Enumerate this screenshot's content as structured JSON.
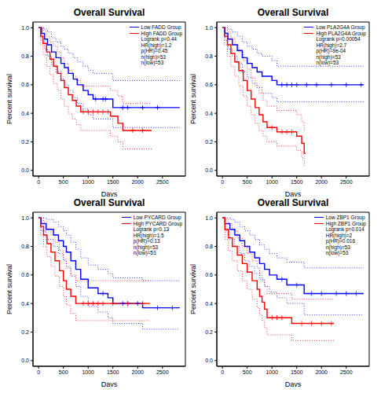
{
  "chart_data": [
    {
      "type": "line",
      "title": "Overall Survival",
      "x_label": "Days",
      "y_label": "Percent survival",
      "xlim": [
        -114,
        2964
      ],
      "xticks": [
        0,
        500,
        1000,
        1500,
        2000,
        2500
      ],
      "ylim": [
        -0.04,
        1.04
      ],
      "yticks": [
        {
          "value": 0,
          "label": "0.0"
        },
        0.2,
        0.4,
        0.6,
        0.8,
        {
          "value": 1,
          "label": "1.0"
        }
      ],
      "legend": "top-right",
      "grid": false,
      "annotations": [
        "Logrank p=0.44",
        "HR(high)=1.2",
        "p(HR)=0.45",
        "n(high)=53",
        "n(low)=53"
      ],
      "series": [
        {
          "name": "Low FADD Group",
          "color": "#0000ff",
          "line_style": "step",
          "marker": "plus",
          "x": [
            0,
            60,
            120,
            180,
            260,
            350,
            450,
            520,
            600,
            700,
            780,
            900,
            1000,
            1100,
            1500,
            2850
          ],
          "values": [
            1,
            0.96,
            0.92,
            0.88,
            0.83,
            0.79,
            0.75,
            0.72,
            0.68,
            0.64,
            0.6,
            0.56,
            0.53,
            0.5,
            0.44,
            0.44
          ],
          "lower": [
            1,
            0.91,
            0.85,
            0.8,
            0.74,
            0.69,
            0.64,
            0.6,
            0.56,
            0.51,
            0.47,
            0.43,
            0.39,
            0.36,
            0.3,
            0.3
          ],
          "upper": [
            1,
            1,
            0.99,
            0.97,
            0.93,
            0.9,
            0.87,
            0.85,
            0.82,
            0.79,
            0.76,
            0.73,
            0.7,
            0.68,
            0.63,
            0.63
          ],
          "censored": [
            1150,
            1300,
            1350,
            1700,
            1800,
            2100,
            2400
          ]
        },
        {
          "name": "High FADD Group",
          "color": "#ff0000",
          "line_style": "step",
          "marker": "plus",
          "x": [
            0,
            40,
            90,
            160,
            230,
            300,
            380,
            450,
            520,
            600,
            680,
            760,
            850,
            1450,
            1600,
            1700,
            2280
          ],
          "values": [
            1,
            0.94,
            0.89,
            0.83,
            0.78,
            0.73,
            0.68,
            0.63,
            0.58,
            0.53,
            0.49,
            0.45,
            0.41,
            0.38,
            0.33,
            0.28,
            0.28
          ],
          "lower": [
            1,
            0.88,
            0.81,
            0.73,
            0.67,
            0.61,
            0.56,
            0.5,
            0.45,
            0.4,
            0.36,
            0.32,
            0.28,
            0.24,
            0.2,
            0.15,
            0.15
          ],
          "upper": [
            1,
            1,
            0.98,
            0.94,
            0.9,
            0.87,
            0.83,
            0.79,
            0.75,
            0.7,
            0.66,
            0.63,
            0.59,
            0.56,
            0.52,
            0.47,
            0.47
          ],
          "censored": [
            900,
            1000,
            1100,
            1200,
            1300,
            1400,
            1900,
            2100
          ]
        }
      ]
    },
    {
      "type": "line",
      "title": "Overall Survival",
      "x_label": "Days",
      "y_label": "Percent survival",
      "xlim": [
        -114,
        2964
      ],
      "xticks": [
        0,
        500,
        1000,
        1500,
        2000,
        2500
      ],
      "ylim": [
        -0.04,
        1.04
      ],
      "yticks": [
        {
          "value": 0,
          "label": "0.0"
        },
        0.2,
        0.4,
        0.6,
        0.8,
        {
          "value": 1,
          "label": "1.0"
        }
      ],
      "legend": "top-right",
      "grid": false,
      "annotations": [
        "Logrank p=0.00054",
        "HR(high)=2.7",
        "p(HR)=9e-04",
        "n(high)=53",
        "n(low)=53"
      ],
      "series": [
        {
          "name": "Low PLA2G4A Group",
          "color": "#0000ff",
          "line_style": "step",
          "marker": "plus",
          "x": [
            0,
            50,
            110,
            200,
            300,
            400,
            500,
            600,
            700,
            800,
            1000,
            1100,
            2850
          ],
          "values": [
            1,
            0.96,
            0.92,
            0.88,
            0.84,
            0.79,
            0.75,
            0.72,
            0.69,
            0.66,
            0.63,
            0.6,
            0.6
          ],
          "lower": [
            1,
            0.91,
            0.85,
            0.8,
            0.75,
            0.69,
            0.65,
            0.61,
            0.58,
            0.54,
            0.51,
            0.48,
            0.48
          ],
          "upper": [
            1,
            1,
            0.99,
            0.97,
            0.94,
            0.9,
            0.87,
            0.85,
            0.82,
            0.8,
            0.77,
            0.73,
            0.73
          ],
          "censored": [
            1200,
            1300,
            1400,
            1500,
            1700,
            1900,
            2200,
            2500,
            2800
          ]
        },
        {
          "name": "High PLA2G4A Group",
          "color": "#ff0000",
          "line_style": "step",
          "marker": "plus",
          "x": [
            0,
            40,
            100,
            170,
            250,
            330,
            420,
            500,
            580,
            660,
            740,
            820,
            900,
            1100,
            1500,
            1600,
            1650,
            1680
          ],
          "values": [
            1,
            0.94,
            0.88,
            0.82,
            0.76,
            0.7,
            0.63,
            0.56,
            0.5,
            0.44,
            0.39,
            0.34,
            0.3,
            0.27,
            0.24,
            0.19,
            0.12,
            0.12
          ],
          "lower": [
            1,
            0.88,
            0.8,
            0.73,
            0.66,
            0.59,
            0.52,
            0.45,
            0.39,
            0.33,
            0.28,
            0.24,
            0.2,
            0.17,
            0.14,
            0.09,
            0.03,
            0.03
          ],
          "upper": [
            1,
            1,
            0.97,
            0.93,
            0.88,
            0.83,
            0.77,
            0.71,
            0.65,
            0.59,
            0.54,
            0.49,
            0.45,
            0.42,
            0.39,
            0.34,
            0.28,
            0.28
          ],
          "censored": [
            1000,
            1200,
            1300,
            1400
          ]
        }
      ]
    },
    {
      "type": "line",
      "title": "Overall Survival",
      "x_label": "Days",
      "y_label": "Percent survival",
      "xlim": [
        -114,
        2964
      ],
      "xticks": [
        0,
        500,
        1000,
        1500,
        2000,
        2500
      ],
      "ylim": [
        -0.04,
        1.04
      ],
      "yticks": [
        {
          "value": 0,
          "label": "0.0"
        },
        0.2,
        0.4,
        0.6,
        0.8,
        {
          "value": 1,
          "label": "1.0"
        }
      ],
      "legend": "top-right",
      "grid": false,
      "annotations": [
        "Logrank p=0.13",
        "HR(high)=1.5",
        "p(HR)=0.13",
        "n(high)=53",
        "n(low)=53"
      ],
      "series": [
        {
          "name": "Low PYCARD Group",
          "color": "#0000ff",
          "line_style": "step",
          "marker": "plus",
          "x": [
            0,
            50,
            150,
            300,
            400,
            500,
            560,
            650,
            750,
            850,
            1000,
            1200,
            1400,
            1500,
            2100,
            2850
          ],
          "values": [
            1,
            0.96,
            0.92,
            0.88,
            0.84,
            0.8,
            0.76,
            0.7,
            0.64,
            0.57,
            0.51,
            0.47,
            0.44,
            0.4,
            0.37,
            0.37
          ],
          "lower": [
            1,
            0.91,
            0.85,
            0.8,
            0.75,
            0.7,
            0.66,
            0.59,
            0.52,
            0.45,
            0.38,
            0.34,
            0.3,
            0.26,
            0.22,
            0.22
          ],
          "upper": [
            1,
            1,
            0.99,
            0.97,
            0.94,
            0.91,
            0.88,
            0.83,
            0.78,
            0.72,
            0.67,
            0.64,
            0.61,
            0.58,
            0.56,
            0.56
          ],
          "censored": [
            1300,
            1700,
            1800,
            2000,
            2400,
            2700
          ]
        },
        {
          "name": "High PYCARD Group",
          "color": "#ff0000",
          "line_style": "step",
          "marker": "plus",
          "x": [
            0,
            40,
            100,
            170,
            250,
            330,
            420,
            500,
            560,
            650,
            750,
            2250
          ],
          "values": [
            1,
            0.94,
            0.88,
            0.82,
            0.76,
            0.7,
            0.63,
            0.56,
            0.5,
            0.45,
            0.4,
            0.4
          ],
          "lower": [
            1,
            0.88,
            0.8,
            0.73,
            0.66,
            0.59,
            0.52,
            0.45,
            0.39,
            0.33,
            0.28,
            0.28
          ],
          "upper": [
            1,
            1,
            0.97,
            0.93,
            0.88,
            0.83,
            0.77,
            0.71,
            0.65,
            0.6,
            0.56,
            0.56
          ],
          "censored": [
            900,
            1000,
            1100,
            1200,
            1300,
            1500,
            1800,
            2100
          ]
        }
      ]
    },
    {
      "type": "line",
      "title": "Overall Survival",
      "x_label": "Days",
      "y_label": "Percent survival",
      "xlim": [
        -114,
        2964
      ],
      "xticks": [
        0,
        500,
        1000,
        1500,
        2000,
        2500
      ],
      "ylim": [
        -0.04,
        1.04
      ],
      "yticks": [
        {
          "value": 0,
          "label": "0.0"
        },
        0.2,
        0.4,
        0.6,
        0.8,
        {
          "value": 1,
          "label": "1.0"
        }
      ],
      "legend": "top-right",
      "grid": false,
      "annotations": [
        "Logrank p=0.014",
        "HR(high)=2",
        "p(HR)=0.016",
        "n(high)=53",
        "n(low)=53"
      ],
      "series": [
        {
          "name": "Low ZBP1 Group",
          "color": "#0000ff",
          "line_style": "step",
          "marker": "plus",
          "x": [
            0,
            50,
            150,
            250,
            350,
            450,
            550,
            650,
            750,
            850,
            950,
            1100,
            1300,
            1650,
            2850
          ],
          "values": [
            1,
            0.96,
            0.92,
            0.88,
            0.84,
            0.8,
            0.76,
            0.72,
            0.68,
            0.64,
            0.6,
            0.57,
            0.53,
            0.47,
            0.47
          ],
          "lower": [
            1,
            0.91,
            0.85,
            0.8,
            0.75,
            0.7,
            0.66,
            0.61,
            0.57,
            0.52,
            0.48,
            0.44,
            0.4,
            0.32,
            0.32
          ],
          "upper": [
            1,
            1,
            0.99,
            0.97,
            0.94,
            0.91,
            0.88,
            0.85,
            0.81,
            0.78,
            0.75,
            0.72,
            0.69,
            0.65,
            0.65
          ],
          "censored": [
            1200,
            1500,
            1800,
            2000,
            2300,
            2500,
            2700
          ]
        },
        {
          "name": "High ZBP1 Group",
          "color": "#ff0000",
          "line_style": "step",
          "marker": "plus",
          "x": [
            0,
            50,
            120,
            200,
            300,
            400,
            500,
            600,
            700,
            750,
            800,
            850,
            900,
            1400,
            2250
          ],
          "values": [
            1,
            0.92,
            0.86,
            0.8,
            0.74,
            0.68,
            0.62,
            0.56,
            0.5,
            0.45,
            0.41,
            0.36,
            0.3,
            0.26,
            0.26
          ],
          "lower": [
            1,
            0.85,
            0.77,
            0.7,
            0.63,
            0.56,
            0.5,
            0.43,
            0.37,
            0.32,
            0.28,
            0.23,
            0.18,
            0.14,
            0.14
          ],
          "upper": [
            1,
            0.99,
            0.96,
            0.91,
            0.86,
            0.8,
            0.75,
            0.7,
            0.65,
            0.6,
            0.56,
            0.52,
            0.47,
            0.43,
            0.43
          ],
          "censored": [
            1000,
            1100,
            1200,
            1600,
            1800,
            2000,
            2200
          ]
        }
      ]
    }
  ]
}
